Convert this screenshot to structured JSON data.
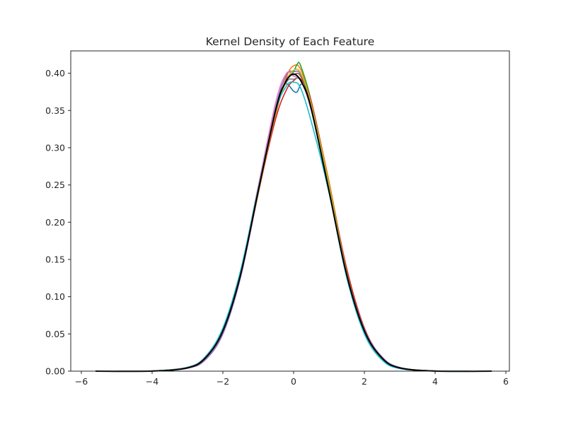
{
  "chart_data": {
    "type": "line",
    "title": "Kernel Density of Each Feature",
    "xlabel": "",
    "ylabel": "",
    "xlim": [
      -6.3,
      6.1
    ],
    "ylim": [
      0.0,
      0.43
    ],
    "x_ticks": [
      -6,
      -4,
      -2,
      0,
      2,
      4,
      6
    ],
    "x_tick_labels": [
      "−6",
      "−4",
      "−2",
      "0",
      "2",
      "4",
      "6"
    ],
    "y_ticks": [
      0.0,
      0.05,
      0.1,
      0.15,
      0.2,
      0.25,
      0.3,
      0.35,
      0.4
    ],
    "y_tick_labels": [
      "0.00",
      "0.05",
      "0.10",
      "0.15",
      "0.20",
      "0.25",
      "0.30",
      "0.35",
      "0.40"
    ],
    "grid": false,
    "legend": "none",
    "series": [
      {
        "color": "#1f77b4",
        "values_at": [
          [
            -5.0,
            0.0
          ],
          [
            -4.0,
            0.0002
          ],
          [
            -3.0,
            0.005
          ],
          [
            -2.5,
            0.018
          ],
          [
            -2.0,
            0.055
          ],
          [
            -1.5,
            0.13
          ],
          [
            -1.0,
            0.24
          ],
          [
            -0.5,
            0.35
          ],
          [
            -0.25,
            0.385
          ],
          [
            0.0,
            0.376
          ],
          [
            0.1,
            0.375
          ],
          [
            0.25,
            0.385
          ],
          [
            0.5,
            0.355
          ],
          [
            1.0,
            0.245
          ],
          [
            1.5,
            0.13
          ],
          [
            2.0,
            0.053
          ],
          [
            2.5,
            0.017
          ],
          [
            3.0,
            0.004
          ],
          [
            4.0,
            0.0002
          ],
          [
            5.0,
            0.0
          ]
        ]
      },
      {
        "color": "#ff7f0e",
        "values_at": [
          [
            -5.3,
            0.0
          ],
          [
            -4.0,
            0.0003
          ],
          [
            -3.0,
            0.0045
          ],
          [
            -2.5,
            0.017
          ],
          [
            -2.0,
            0.054
          ],
          [
            -1.5,
            0.128
          ],
          [
            -1.0,
            0.238
          ],
          [
            -0.5,
            0.345
          ],
          [
            -0.2,
            0.395
          ],
          [
            0.0,
            0.41
          ],
          [
            0.2,
            0.405
          ],
          [
            0.5,
            0.36
          ],
          [
            1.0,
            0.255
          ],
          [
            1.5,
            0.135
          ],
          [
            2.0,
            0.054
          ],
          [
            2.5,
            0.016
          ],
          [
            3.0,
            0.004
          ],
          [
            4.0,
            0.0002
          ],
          [
            5.0,
            0.0
          ]
        ]
      },
      {
        "color": "#2ca02c",
        "values_at": [
          [
            -5.0,
            0.0
          ],
          [
            -4.0,
            0.0002
          ],
          [
            -3.0,
            0.0048
          ],
          [
            -2.5,
            0.018
          ],
          [
            -2.0,
            0.056
          ],
          [
            -1.5,
            0.132
          ],
          [
            -1.0,
            0.242
          ],
          [
            -0.5,
            0.352
          ],
          [
            -0.2,
            0.39
          ],
          [
            0.0,
            0.402
          ],
          [
            0.1,
            0.412
          ],
          [
            0.2,
            0.41
          ],
          [
            0.5,
            0.362
          ],
          [
            1.0,
            0.247
          ],
          [
            1.5,
            0.128
          ],
          [
            2.0,
            0.052
          ],
          [
            2.5,
            0.016
          ],
          [
            3.0,
            0.004
          ],
          [
            4.0,
            0.0002
          ],
          [
            5.0,
            0.0
          ]
        ]
      },
      {
        "color": "#d62728",
        "values_at": [
          [
            -5.0,
            0.0
          ],
          [
            -4.0,
            0.0002
          ],
          [
            -3.0,
            0.0052
          ],
          [
            -2.5,
            0.019
          ],
          [
            -2.0,
            0.057
          ],
          [
            -1.5,
            0.131
          ],
          [
            -1.0,
            0.241
          ],
          [
            -0.5,
            0.34
          ],
          [
            -0.2,
            0.378
          ],
          [
            0.0,
            0.39
          ],
          [
            0.2,
            0.392
          ],
          [
            0.5,
            0.362
          ],
          [
            1.0,
            0.252
          ],
          [
            1.5,
            0.138
          ],
          [
            2.0,
            0.058
          ],
          [
            2.5,
            0.018
          ],
          [
            3.0,
            0.0045
          ],
          [
            4.0,
            0.0002
          ],
          [
            5.0,
            0.0
          ]
        ]
      },
      {
        "color": "#9467bd",
        "values_at": [
          [
            -5.0,
            0.0
          ],
          [
            -4.0,
            0.0002
          ],
          [
            -3.0,
            0.004
          ],
          [
            -2.5,
            0.015
          ],
          [
            -2.0,
            0.05
          ],
          [
            -1.5,
            0.126
          ],
          [
            -1.0,
            0.24
          ],
          [
            -0.5,
            0.355
          ],
          [
            -0.2,
            0.398
          ],
          [
            0.0,
            0.402
          ],
          [
            0.2,
            0.398
          ],
          [
            0.5,
            0.355
          ],
          [
            1.0,
            0.25
          ],
          [
            1.5,
            0.132
          ],
          [
            2.0,
            0.056
          ],
          [
            2.5,
            0.019
          ],
          [
            3.0,
            0.005
          ],
          [
            4.0,
            0.0003
          ],
          [
            5.5,
            0.0
          ]
        ]
      },
      {
        "color": "#8c564b",
        "values_at": [
          [
            -5.0,
            0.0
          ],
          [
            -4.0,
            0.0002
          ],
          [
            -3.0,
            0.0046
          ],
          [
            -2.5,
            0.0175
          ],
          [
            -2.0,
            0.055
          ],
          [
            -1.5,
            0.13
          ],
          [
            -1.0,
            0.24
          ],
          [
            -0.5,
            0.35
          ],
          [
            -0.2,
            0.392
          ],
          [
            0.0,
            0.398
          ],
          [
            0.2,
            0.396
          ],
          [
            0.5,
            0.356
          ],
          [
            1.0,
            0.25
          ],
          [
            1.5,
            0.131
          ],
          [
            2.0,
            0.054
          ],
          [
            2.5,
            0.017
          ],
          [
            3.0,
            0.0042
          ],
          [
            4.0,
            0.0002
          ],
          [
            5.0,
            0.0
          ]
        ]
      },
      {
        "color": "#e377c2",
        "values_at": [
          [
            -5.0,
            0.0
          ],
          [
            -4.0,
            0.0002
          ],
          [
            -3.0,
            0.0048
          ],
          [
            -2.5,
            0.018
          ],
          [
            -2.0,
            0.056
          ],
          [
            -1.5,
            0.134
          ],
          [
            -1.0,
            0.248
          ],
          [
            -0.5,
            0.362
          ],
          [
            -0.2,
            0.4
          ],
          [
            0.0,
            0.396
          ],
          [
            0.2,
            0.39
          ],
          [
            0.5,
            0.35
          ],
          [
            1.0,
            0.245
          ],
          [
            1.5,
            0.128
          ],
          [
            2.0,
            0.052
          ],
          [
            2.5,
            0.016
          ],
          [
            3.0,
            0.004
          ],
          [
            4.0,
            0.0002
          ],
          [
            5.0,
            0.0
          ]
        ]
      },
      {
        "color": "#7f7f7f",
        "values_at": [
          [
            -5.0,
            0.0
          ],
          [
            -4.0,
            0.0002
          ],
          [
            -3.0,
            0.0045
          ],
          [
            -2.5,
            0.017
          ],
          [
            -2.0,
            0.054
          ],
          [
            -1.5,
            0.13
          ],
          [
            -1.0,
            0.242
          ],
          [
            -0.5,
            0.352
          ],
          [
            -0.2,
            0.388
          ],
          [
            0.0,
            0.392
          ],
          [
            0.2,
            0.39
          ],
          [
            0.5,
            0.352
          ],
          [
            1.0,
            0.248
          ],
          [
            1.5,
            0.131
          ],
          [
            2.0,
            0.054
          ],
          [
            2.5,
            0.017
          ],
          [
            3.0,
            0.0043
          ],
          [
            4.0,
            0.0002
          ],
          [
            5.0,
            0.0
          ]
        ]
      },
      {
        "color": "#bcbd22",
        "values_at": [
          [
            -5.0,
            0.0
          ],
          [
            -4.0,
            0.0002
          ],
          [
            -3.0,
            0.0047
          ],
          [
            -2.5,
            0.0178
          ],
          [
            -2.0,
            0.0555
          ],
          [
            -1.5,
            0.131
          ],
          [
            -1.0,
            0.241
          ],
          [
            -0.5,
            0.348
          ],
          [
            -0.2,
            0.39
          ],
          [
            0.0,
            0.404
          ],
          [
            0.2,
            0.4
          ],
          [
            0.5,
            0.358
          ],
          [
            1.0,
            0.251
          ],
          [
            1.5,
            0.132
          ],
          [
            2.0,
            0.054
          ],
          [
            2.5,
            0.017
          ],
          [
            3.0,
            0.0042
          ],
          [
            4.0,
            0.0002
          ],
          [
            5.0,
            0.0
          ]
        ]
      },
      {
        "color": "#17becf",
        "values_at": [
          [
            -5.0,
            0.0
          ],
          [
            -4.0,
            0.0002
          ],
          [
            -3.0,
            0.005
          ],
          [
            -2.5,
            0.019
          ],
          [
            -2.0,
            0.058
          ],
          [
            -1.5,
            0.135
          ],
          [
            -1.0,
            0.245
          ],
          [
            -0.5,
            0.35
          ],
          [
            -0.2,
            0.383
          ],
          [
            0.0,
            0.388
          ],
          [
            0.2,
            0.38
          ],
          [
            0.5,
            0.335
          ],
          [
            1.0,
            0.24
          ],
          [
            1.5,
            0.126
          ],
          [
            2.0,
            0.05
          ],
          [
            2.5,
            0.015
          ],
          [
            3.0,
            0.0035
          ],
          [
            4.0,
            0.0002
          ],
          [
            5.0,
            0.0
          ]
        ]
      },
      {
        "color": "#000000",
        "values_at": [
          [
            -5.6,
            0.0
          ],
          [
            -4.0,
            0.0001
          ],
          [
            -3.0,
            0.0044
          ],
          [
            -2.5,
            0.0175
          ],
          [
            -2.0,
            0.054
          ],
          [
            -1.5,
            0.1295
          ],
          [
            -1.0,
            0.242
          ],
          [
            -0.5,
            0.352
          ],
          [
            -0.25,
            0.386
          ],
          [
            0.0,
            0.3989
          ],
          [
            0.25,
            0.386
          ],
          [
            0.5,
            0.352
          ],
          [
            1.0,
            0.242
          ],
          [
            1.5,
            0.1295
          ],
          [
            2.0,
            0.054
          ],
          [
            2.5,
            0.0175
          ],
          [
            3.0,
            0.0044
          ],
          [
            4.0,
            0.0001
          ],
          [
            5.6,
            0.0
          ]
        ]
      }
    ]
  }
}
